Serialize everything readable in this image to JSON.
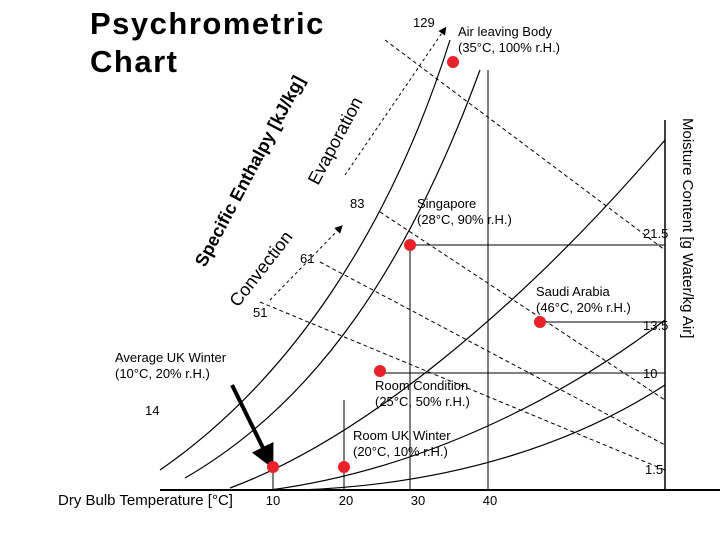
{
  "chart_data": {
    "type": "scatter",
    "title": "Psychrometric Chart",
    "xlabel": "Dry Bulb Temperature [°C]",
    "ylabel": "Moisture Content [g Water/kg Air]",
    "diagonal_label": "Specific Enthalpy [kJ/kg]",
    "x_ticks": [
      "10",
      "20",
      "30",
      "40"
    ],
    "y_ticks": [
      "1.5",
      "10",
      "13.5",
      "21.5"
    ],
    "enthalpy_ticks": [
      "14",
      "51",
      "61",
      "83",
      "129"
    ],
    "arrow_labels": [
      "Convection",
      "Evaporation"
    ],
    "points": [
      {
        "label": "Average UK Winter (10°C, 20% r.H.)",
        "label_lines": [
          "Average UK Winter",
          "(10°C, 20%  r.H.)"
        ],
        "x": 10,
        "y": 1.5
      },
      {
        "label": "Room UK Winter (20°C, 10% r.H.)",
        "label_lines": [
          "Room UK Winter",
          "(20°C, 10%  r.H.)"
        ],
        "x": 20,
        "y": 1.5
      },
      {
        "label": "Room Condition (25°C, 50% r.H.)",
        "label_lines": [
          "Room Condition",
          "(25°C, 50%  r.H.)"
        ],
        "x": 25,
        "y": 10
      },
      {
        "label": "Saudi Arabia (46°C, 20% r.H.)",
        "label_lines": [
          "Saudi Arabia",
          "(46°C, 20%  r.H.)"
        ],
        "x": 46,
        "y": 13.5
      },
      {
        "label": "Singapore (28°C, 90% r.H.)",
        "label_lines": [
          "Singapore",
          "(28°C, 90%  r.H.)"
        ],
        "x": 28,
        "y": 21.5
      },
      {
        "label": "Air leaving Body (35°C, 100% r.H.)",
        "label_lines": [
          "Air leaving Body",
          "(35°C, 100%  r.H.)"
        ],
        "x": 35,
        "y": 37
      }
    ],
    "colors": {
      "point": "#e8212a",
      "line": "#000000"
    }
  }
}
